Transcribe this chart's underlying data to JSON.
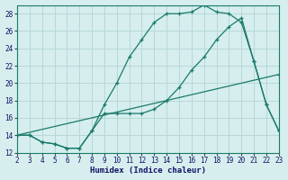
{
  "xlabel": "Humidex (Indice chaleur)",
  "background_color": "#d6eeee",
  "grid_color": "#b8d8d8",
  "line_color": "#1a7a6a",
  "xlim": [
    2,
    23
  ],
  "ylim": [
    12,
    29
  ],
  "xticks": [
    2,
    3,
    4,
    5,
    6,
    7,
    8,
    9,
    10,
    11,
    12,
    13,
    14,
    15,
    16,
    17,
    18,
    19,
    20,
    21,
    22,
    23
  ],
  "yticks": [
    12,
    14,
    16,
    18,
    20,
    22,
    24,
    26,
    28
  ],
  "curve_upper_x": [
    2,
    3,
    4,
    5,
    6,
    7,
    8,
    9,
    10,
    11,
    12,
    13,
    14,
    15,
    16,
    17,
    18,
    19,
    20,
    21,
    22,
    23
  ],
  "curve_upper_y": [
    14.0,
    14.0,
    13.2,
    13.0,
    12.5,
    12.5,
    14.5,
    17.5,
    20.0,
    23.0,
    25.0,
    27.0,
    28.0,
    28.0,
    28.2,
    29.0,
    28.2,
    28.0,
    27.0,
    22.5,
    17.5,
    14.5
  ],
  "curve_mid_x": [
    2,
    3,
    4,
    5,
    6,
    7,
    8,
    9,
    10,
    11,
    12,
    13,
    14,
    15,
    16,
    17,
    18,
    19,
    20,
    21,
    22,
    23
  ],
  "curve_mid_y": [
    14.0,
    14.0,
    13.2,
    13.0,
    12.5,
    12.5,
    14.5,
    16.5,
    16.5,
    16.5,
    16.5,
    17.0,
    18.0,
    19.5,
    21.5,
    23.0,
    25.0,
    26.5,
    27.5,
    22.5,
    17.5,
    14.5
  ],
  "curve_line_x": [
    2,
    23
  ],
  "curve_line_y": [
    14.0,
    21.0
  ]
}
